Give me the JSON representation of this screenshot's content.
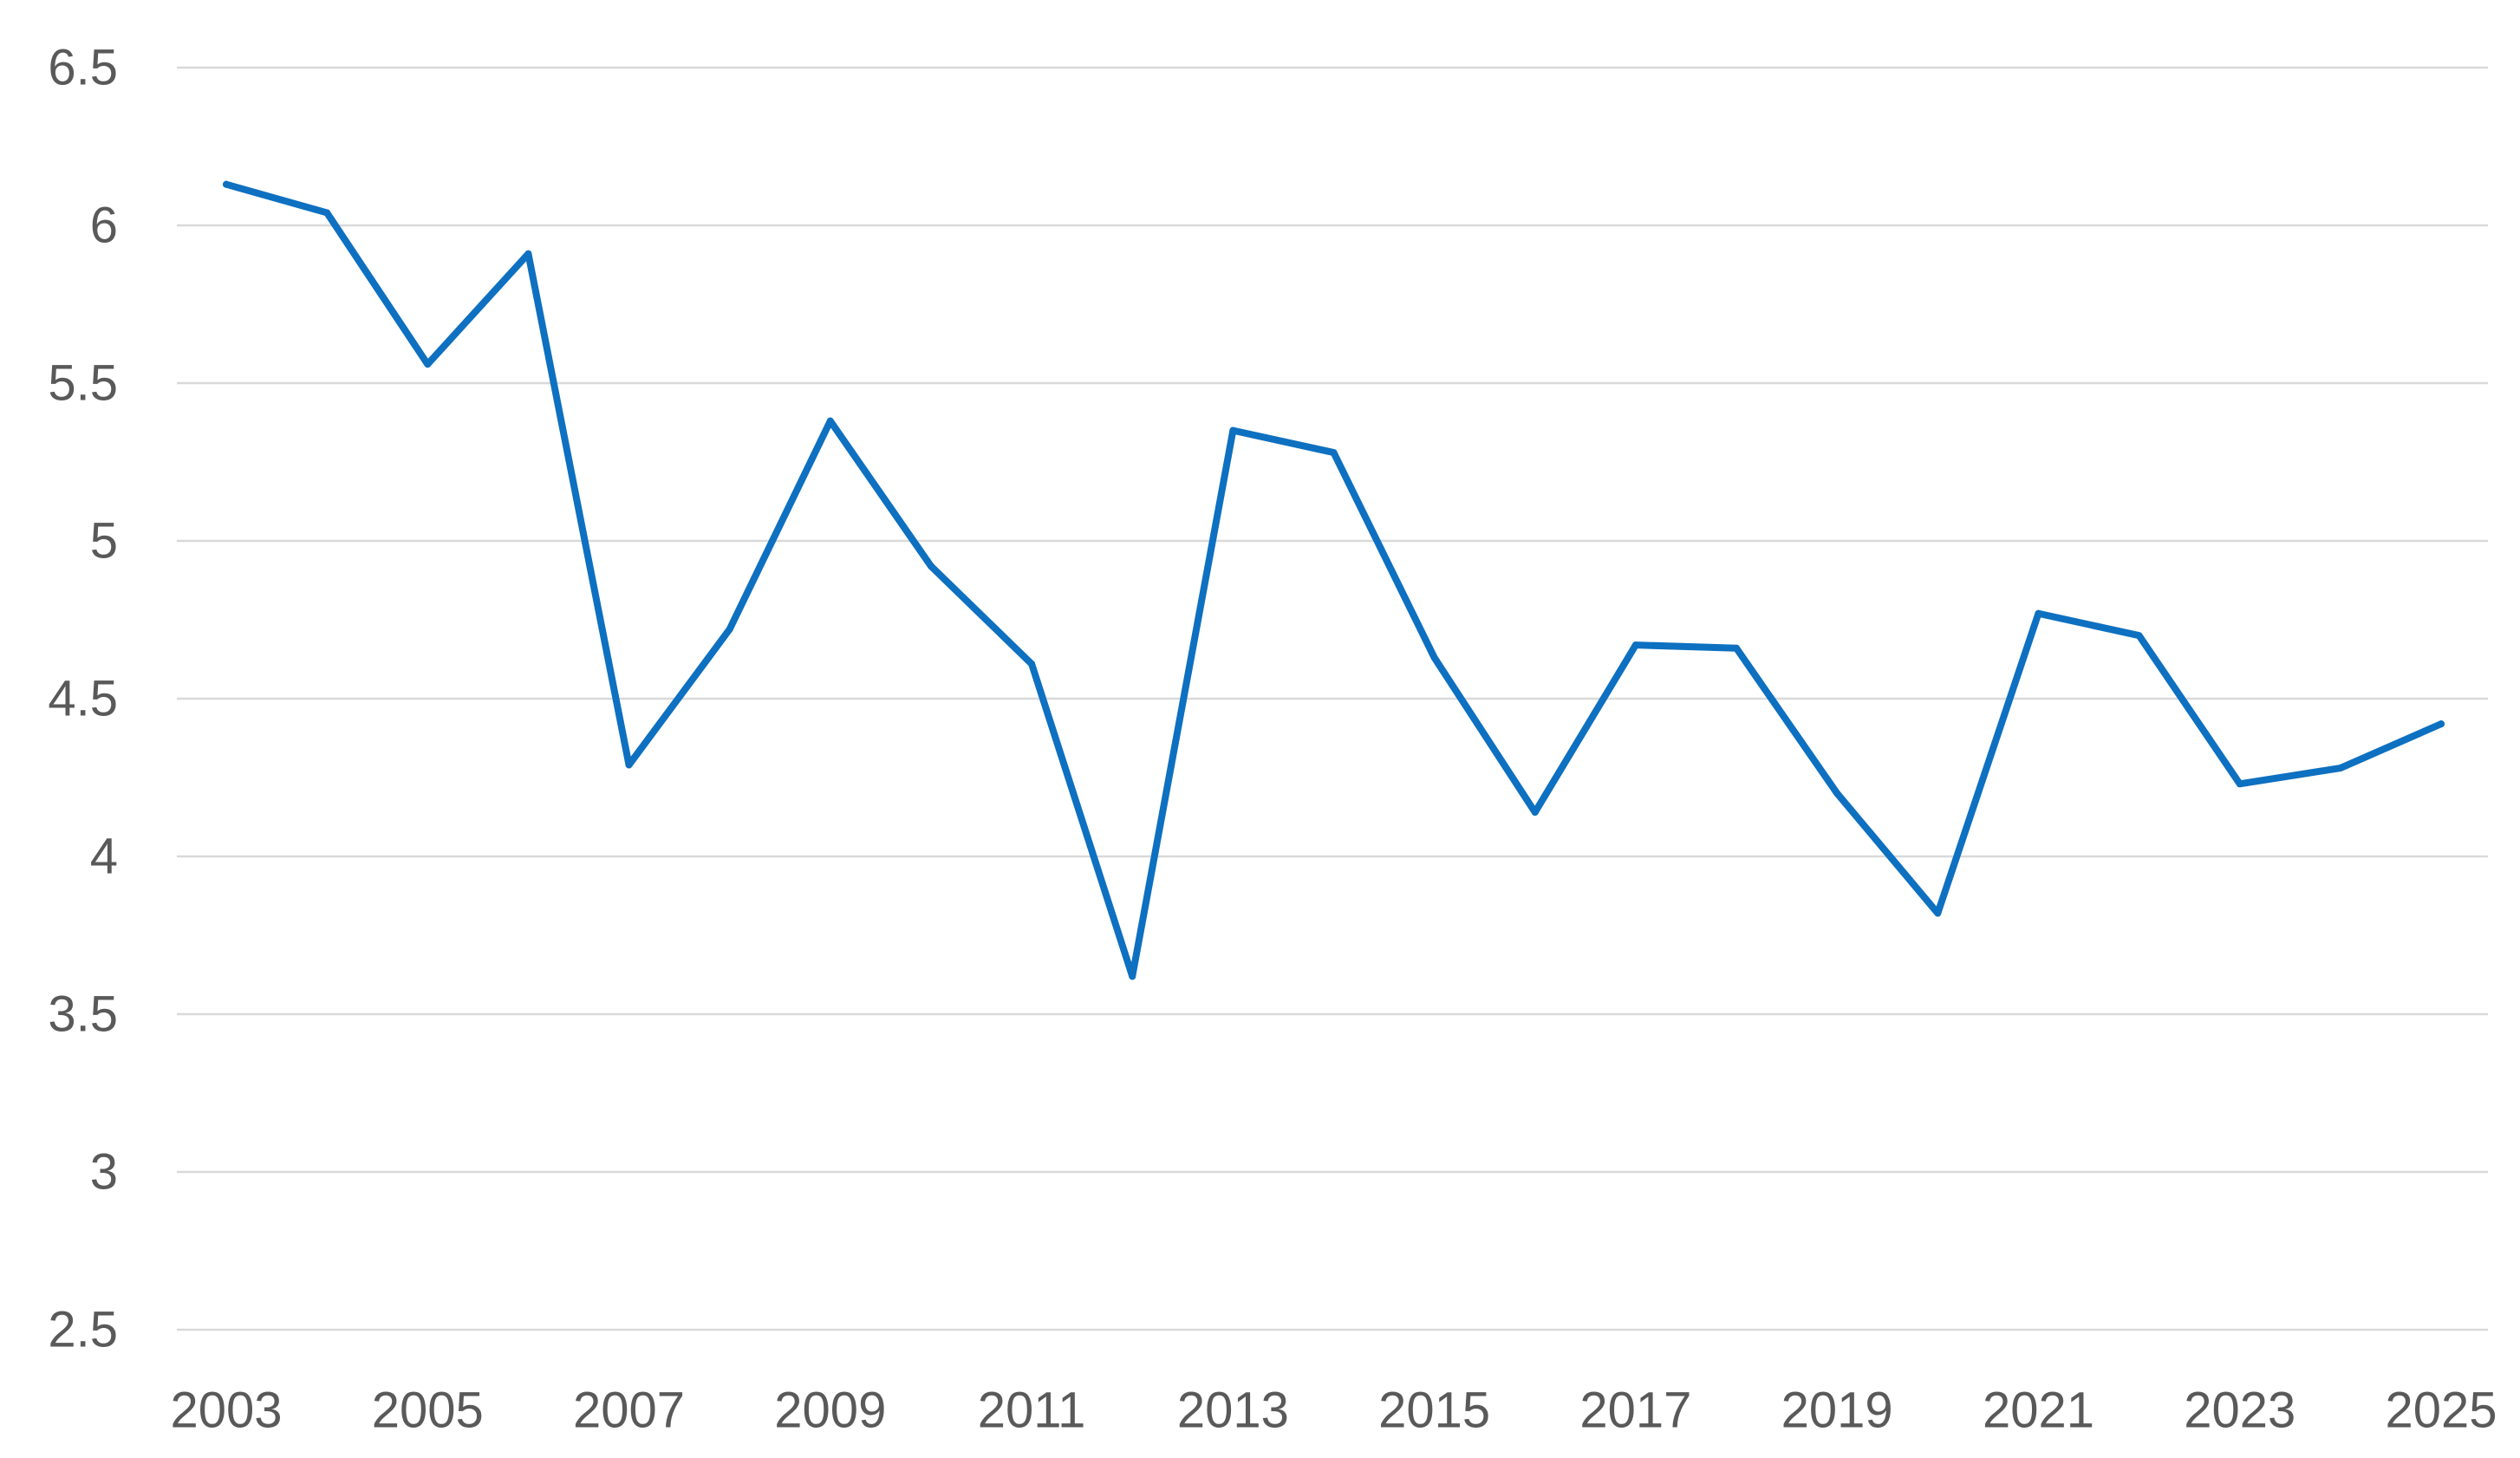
{
  "chart_data": {
    "type": "line",
    "title": "",
    "xlabel": "",
    "ylabel": "",
    "x": [
      2003,
      2004,
      2005,
      2006,
      2007,
      2008,
      2009,
      2010,
      2011,
      2012,
      2013,
      2014,
      2015,
      2016,
      2017,
      2018,
      2019,
      2020,
      2021,
      2022,
      2023,
      2024,
      2025
    ],
    "x_tick_labels": [
      "2003",
      "2005",
      "2007",
      "2009",
      "2011",
      "2013",
      "2015",
      "2017",
      "2019",
      "2021",
      "2023",
      "2025"
    ],
    "y_tick_labels": [
      "6.5",
      "6",
      "5.5",
      "5",
      "4.5",
      "4",
      "3.5",
      "3",
      "2.5"
    ],
    "ylim": [
      2.5,
      6.5
    ],
    "grid": true,
    "legend": "none",
    "series": [
      {
        "color": "#0e70c0",
        "values": [
          6.13,
          6.04,
          5.56,
          5.91,
          4.29,
          4.72,
          5.38,
          4.92,
          4.61,
          3.62,
          5.35,
          5.28,
          4.63,
          4.14,
          4.67,
          4.66,
          4.2,
          3.82,
          4.77,
          4.7,
          4.23,
          4.28,
          4.42
        ]
      }
    ]
  }
}
